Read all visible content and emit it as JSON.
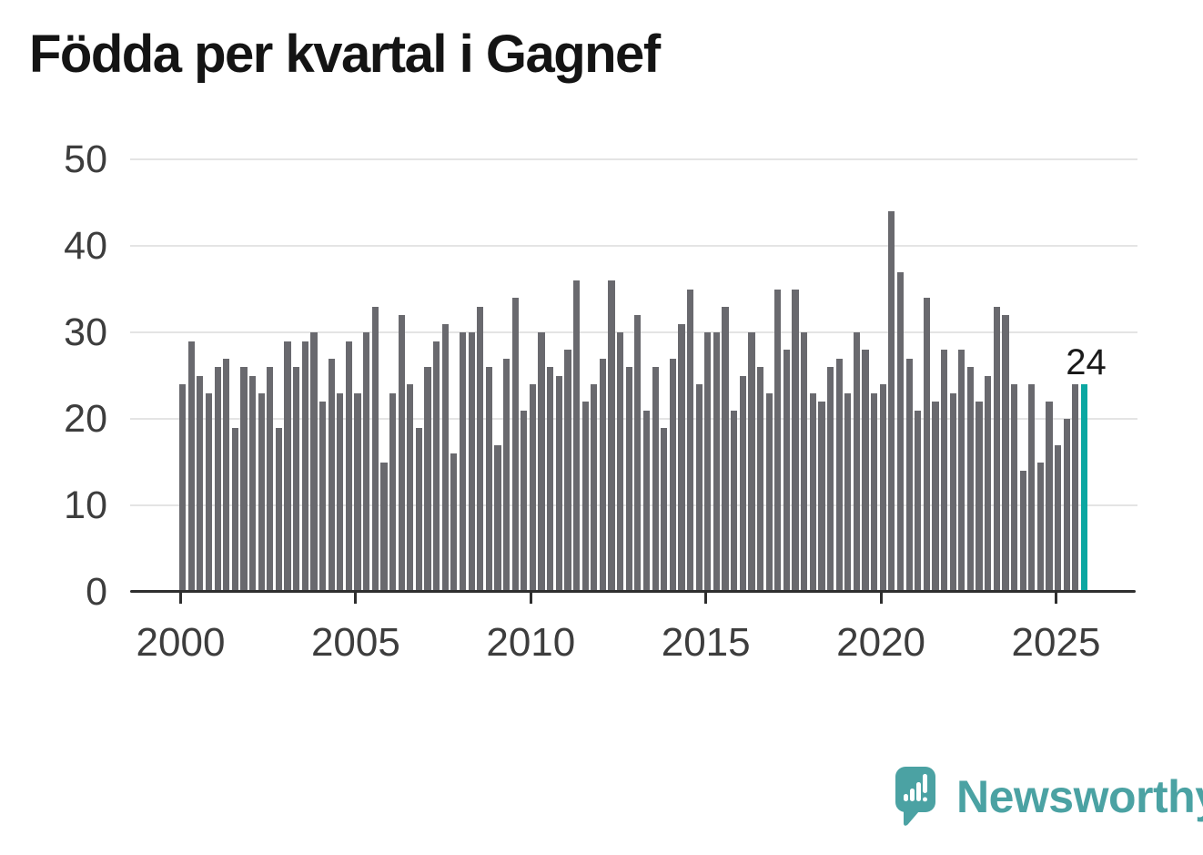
{
  "header": {
    "title": "Födda per kvartal i Gagnef"
  },
  "chart_data": {
    "type": "bar",
    "title": "Födda per kvartal i Gagnef",
    "xlabel": "",
    "ylabel": "",
    "ylim": [
      0,
      50
    ],
    "grid": true,
    "legend": "none",
    "y_ticks": [
      0,
      10,
      20,
      30,
      40,
      50
    ],
    "x_tick_labels": [
      "2000",
      "2005",
      "2010",
      "2015",
      "2020",
      "2025"
    ],
    "categories": [
      "2000 Q1",
      "2000 Q2",
      "2000 Q3",
      "2000 Q4",
      "2001 Q1",
      "2001 Q2",
      "2001 Q3",
      "2001 Q4",
      "2002 Q1",
      "2002 Q2",
      "2002 Q3",
      "2002 Q4",
      "2003 Q1",
      "2003 Q2",
      "2003 Q3",
      "2003 Q4",
      "2004 Q1",
      "2004 Q2",
      "2004 Q3",
      "2004 Q4",
      "2005 Q1",
      "2005 Q2",
      "2005 Q3",
      "2005 Q4",
      "2006 Q1",
      "2006 Q2",
      "2006 Q3",
      "2006 Q4",
      "2007 Q1",
      "2007 Q2",
      "2007 Q3",
      "2007 Q4",
      "2008 Q1",
      "2008 Q2",
      "2008 Q3",
      "2008 Q4",
      "2009 Q1",
      "2009 Q2",
      "2009 Q3",
      "2009 Q4",
      "2010 Q1",
      "2010 Q2",
      "2010 Q3",
      "2010 Q4",
      "2011 Q1",
      "2011 Q2",
      "2011 Q3",
      "2011 Q4",
      "2012 Q1",
      "2012 Q2",
      "2012 Q3",
      "2012 Q4",
      "2013 Q1",
      "2013 Q2",
      "2013 Q3",
      "2013 Q4",
      "2014 Q1",
      "2014 Q2",
      "2014 Q3",
      "2014 Q4",
      "2015 Q1",
      "2015 Q2",
      "2015 Q3",
      "2015 Q4",
      "2016 Q1",
      "2016 Q2",
      "2016 Q3",
      "2016 Q4",
      "2017 Q1",
      "2017 Q2",
      "2017 Q3",
      "2017 Q4",
      "2018 Q1",
      "2018 Q2",
      "2018 Q3",
      "2018 Q4",
      "2019 Q1",
      "2019 Q2",
      "2019 Q3",
      "2019 Q4",
      "2020 Q1",
      "2020 Q2",
      "2020 Q3",
      "2020 Q4",
      "2021 Q1",
      "2021 Q2",
      "2021 Q3",
      "2021 Q4",
      "2022 Q1",
      "2022 Q2",
      "2022 Q3",
      "2022 Q4",
      "2023 Q1",
      "2023 Q2",
      "2023 Q3",
      "2023 Q4",
      "2024 Q1",
      "2024 Q2",
      "2024 Q3",
      "2024 Q4",
      "2025 Q1",
      "2025 Q2",
      "2025 Q3",
      "2025 Q4"
    ],
    "values": [
      24,
      29,
      25,
      23,
      26,
      27,
      19,
      26,
      25,
      23,
      26,
      19,
      29,
      26,
      29,
      30,
      22,
      27,
      23,
      29,
      23,
      30,
      33,
      15,
      23,
      32,
      24,
      19,
      26,
      29,
      31,
      16,
      30,
      30,
      33,
      26,
      17,
      27,
      34,
      21,
      24,
      30,
      26,
      25,
      28,
      36,
      22,
      24,
      27,
      36,
      30,
      26,
      32,
      21,
      26,
      19,
      27,
      31,
      35,
      24,
      30,
      30,
      33,
      21,
      25,
      30,
      26,
      23,
      35,
      28,
      35,
      30,
      23,
      22,
      26,
      27,
      23,
      30,
      28,
      23,
      24,
      44,
      37,
      27,
      21,
      34,
      22,
      28,
      23,
      28,
      26,
      22,
      25,
      33,
      32,
      24,
      14,
      24,
      15,
      22,
      17,
      20,
      24,
      24
    ],
    "highlight_last_bar": true,
    "last_value_label": "24"
  },
  "colors": {
    "bar": "#69696e",
    "highlight": "#0ba7a2",
    "gridline": "#e4e4e4",
    "axis": "#2e2e2e",
    "tick_label": "#3d3d3d",
    "title": "#141414",
    "annotation": "#1a1a1a",
    "logo": "#4ba2a3"
  },
  "footer": {
    "logo_text": "Newsworthy",
    "logo_icon": "newsworthy-speech-bubble-bar-chart-icon"
  }
}
